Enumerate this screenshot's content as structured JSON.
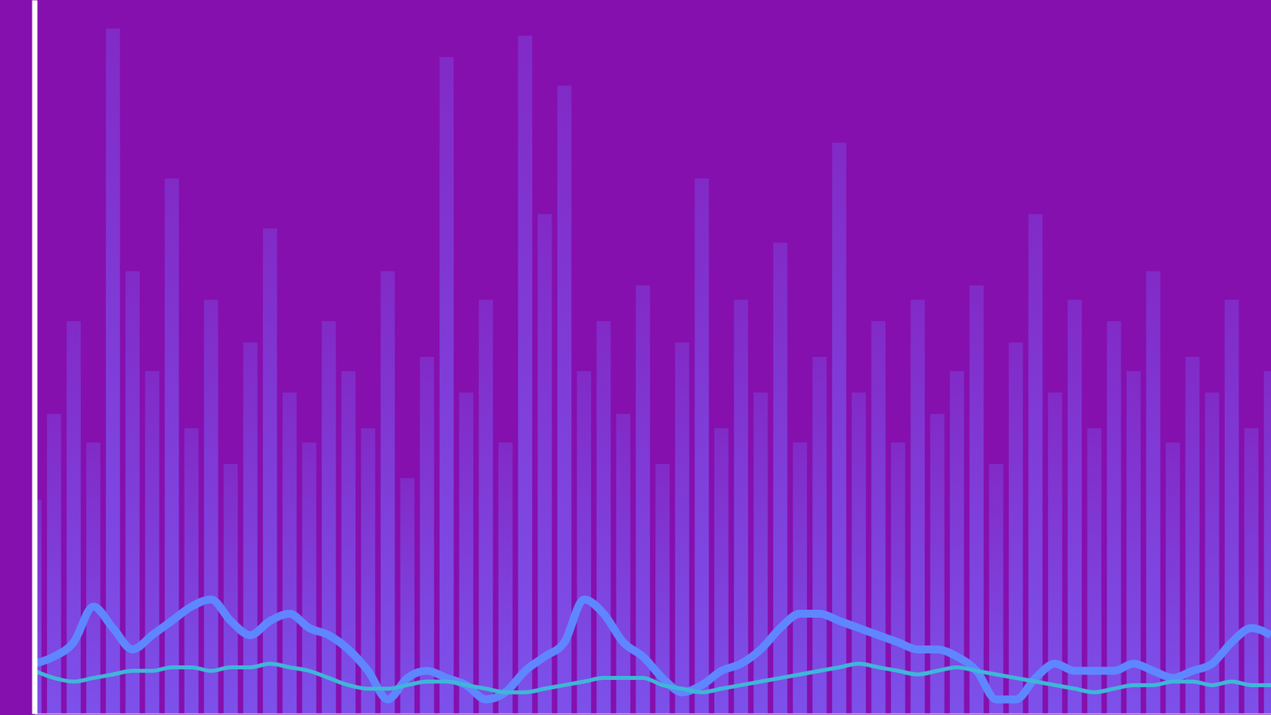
{
  "chart_data": {
    "type": "bar",
    "x": [
      0,
      1,
      2,
      3,
      4,
      5,
      6,
      7,
      8,
      9,
      10,
      11,
      12,
      13,
      14,
      15,
      16,
      17,
      18,
      19,
      20,
      21,
      22,
      23,
      24,
      25,
      26,
      27,
      28,
      29,
      30,
      31,
      32,
      33,
      34,
      35,
      36,
      37,
      38,
      39,
      40,
      41,
      42,
      43,
      44,
      45,
      46,
      47,
      48,
      49,
      50,
      51,
      52,
      53,
      54,
      55,
      56,
      57,
      58,
      59,
      60,
      61,
      62,
      63
    ],
    "series": [
      {
        "type": "bar",
        "color": "#7b5cf5",
        "values": [
          30,
          42,
          55,
          38,
          96,
          62,
          48,
          75,
          40,
          58,
          35,
          52,
          68,
          45,
          38,
          55,
          48,
          40,
          62,
          33,
          50,
          92,
          45,
          58,
          38,
          95,
          70,
          88,
          48,
          55,
          42,
          60,
          35,
          52,
          75,
          40,
          58,
          45,
          66,
          38,
          50,
          80,
          45,
          55,
          38,
          58,
          42,
          48,
          60,
          35,
          52,
          70,
          45,
          58,
          40,
          55,
          48,
          62,
          38,
          50,
          45,
          58,
          40,
          48
        ]
      },
      {
        "type": "line",
        "color": "#5f86ff",
        "values": [
          7,
          8,
          10,
          15,
          12,
          9,
          11,
          13,
          15,
          16,
          13,
          11,
          13,
          14,
          12,
          11,
          9,
          6,
          2,
          5,
          6,
          5,
          4,
          2,
          3,
          6,
          8,
          10,
          16,
          14,
          10,
          8,
          5,
          3,
          4,
          6,
          7,
          9,
          12,
          14,
          14,
          13,
          12,
          11,
          10,
          9,
          9,
          8,
          6,
          2,
          2,
          5,
          7,
          6,
          6,
          6,
          7,
          6,
          5,
          6,
          7,
          10,
          12,
          11
        ]
      },
      {
        "type": "line",
        "color": "#3fb6d8",
        "values": [
          6,
          5,
          4.5,
          5,
          5.5,
          6,
          6,
          6.5,
          6.5,
          6,
          6.5,
          6.5,
          7,
          6.5,
          6,
          5,
          4,
          3.5,
          3.5,
          4,
          4.5,
          4.5,
          4,
          3.5,
          3,
          3,
          3.5,
          4,
          4.5,
          5,
          5,
          5,
          4,
          3.5,
          3,
          3.5,
          4,
          4.5,
          5,
          5.5,
          6,
          6.5,
          7,
          6.5,
          6,
          5.5,
          6,
          6.5,
          6,
          5.5,
          5,
          4.5,
          4,
          3.5,
          3,
          3.5,
          4,
          4,
          4.5,
          4.5,
          4,
          4.5,
          4,
          4
        ]
      }
    ],
    "xlim": [
      0,
      63
    ],
    "ylim": [
      0,
      100
    ],
    "xticks": [],
    "yticks": [],
    "tick_labels": false,
    "grid": false
  }
}
